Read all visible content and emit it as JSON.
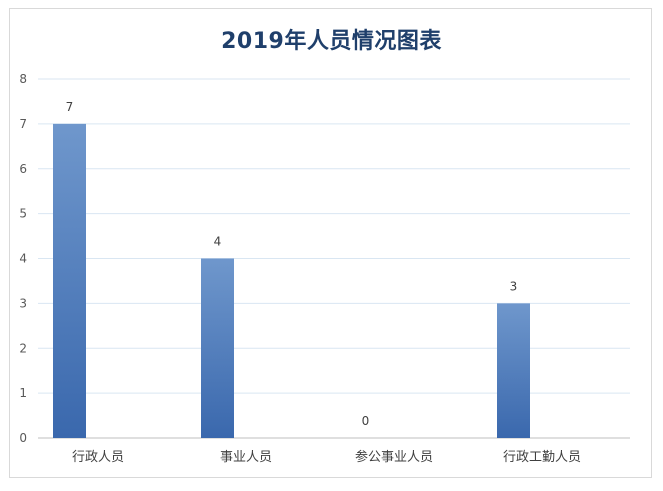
{
  "chart_data": {
    "type": "bar",
    "title": "2019年人员情况图表",
    "xlabel": "",
    "ylabel": "",
    "categories": [
      "行政人员",
      "事业人员",
      "参公事业人员",
      "行政工勤人员"
    ],
    "values": [
      7,
      4,
      0,
      3
    ],
    "data_labels": [
      "7",
      "4",
      "0",
      "3"
    ],
    "ylim": [
      0,
      8
    ],
    "yticks": [
      "0",
      "1",
      "2",
      "3",
      "4",
      "5",
      "6",
      "7",
      "8"
    ],
    "grid": true,
    "legend": "none",
    "colors": {
      "bar_top": "#6f97cc",
      "bar_bottom": "#3a68ad",
      "grid": "#d9e6f2",
      "title": "#1f3f6b"
    }
  }
}
